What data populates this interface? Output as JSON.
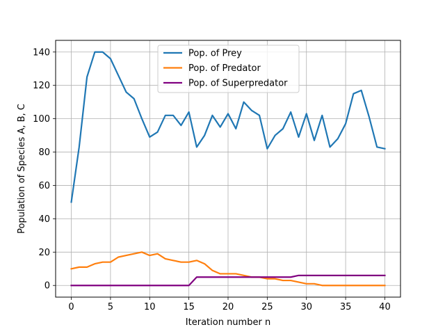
{
  "chart_data": {
    "type": "line",
    "title": "",
    "xlabel": "Iteration number n",
    "ylabel": "Population of Species A, B, C",
    "xlim": [
      -2,
      42
    ],
    "ylim": [
      -7,
      147
    ],
    "xticks": [
      0,
      5,
      10,
      15,
      20,
      25,
      30,
      35,
      40
    ],
    "yticks": [
      0,
      20,
      40,
      60,
      80,
      100,
      120,
      140
    ],
    "grid": true,
    "legend_position": "top-center",
    "x": [
      0,
      1,
      2,
      3,
      4,
      5,
      6,
      7,
      8,
      9,
      10,
      11,
      12,
      13,
      14,
      15,
      16,
      17,
      18,
      19,
      20,
      21,
      22,
      23,
      24,
      25,
      26,
      27,
      28,
      29,
      30,
      31,
      32,
      33,
      34,
      35,
      36,
      37,
      38,
      39,
      40
    ],
    "series": [
      {
        "name": "Pop. of Prey",
        "color": "#1f77b4",
        "values": [
          50,
          83,
          125,
          140,
          140,
          136,
          126,
          116,
          112,
          100,
          89,
          92,
          102,
          102,
          96,
          104,
          83,
          90,
          102,
          95,
          103,
          94,
          110,
          105,
          102,
          82,
          90,
          94,
          104,
          89,
          103,
          87,
          102,
          83,
          88,
          97,
          115,
          117,
          101,
          83,
          82
        ]
      },
      {
        "name": "Pop. of Predator",
        "color": "#ff7f0e",
        "values": [
          10,
          11,
          11,
          13,
          14,
          14,
          17,
          18,
          19,
          20,
          18,
          19,
          16,
          15,
          14,
          14,
          15,
          13,
          9,
          7,
          7,
          7,
          6,
          5,
          5,
          4,
          4,
          3,
          3,
          2,
          1,
          1,
          0,
          0,
          0,
          0,
          0,
          0,
          0,
          0,
          0
        ]
      },
      {
        "name": "Pop. of Superpredator",
        "color": "#800080",
        "values": [
          0,
          0,
          0,
          0,
          0,
          0,
          0,
          0,
          0,
          0,
          0,
          0,
          0,
          0,
          0,
          0,
          5,
          5,
          5,
          5,
          5,
          5,
          5,
          5,
          5,
          5,
          5,
          5,
          5,
          6,
          6,
          6,
          6,
          6,
          6,
          6,
          6,
          6,
          6,
          6,
          6
        ]
      }
    ]
  }
}
